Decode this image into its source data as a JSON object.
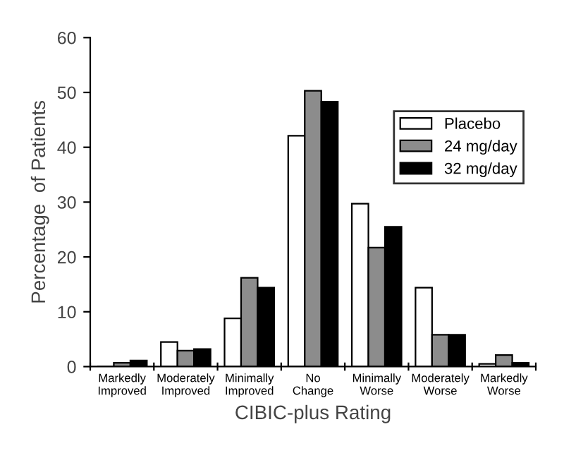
{
  "chart_data": {
    "type": "bar",
    "categories": [
      "Markedly\nImproved",
      "Moderately\nImproved",
      "Minimally\nImproved",
      "No\nChange",
      "Minimally\nWorse",
      "Moderately\nWorse",
      "Markedly\nWorse"
    ],
    "series": [
      {
        "name": "Placebo",
        "color": "#ffffff",
        "values": [
          0,
          4.5,
          8.8,
          42.1,
          29.7,
          14.4,
          0.5
        ]
      },
      {
        "name": "24 mg/day",
        "color": "#8c8c8c",
        "values": [
          0.7,
          2.9,
          16.2,
          50.3,
          21.7,
          5.8,
          2.1
        ]
      },
      {
        "name": "32 mg/day",
        "color": "#000000",
        "values": [
          1.1,
          3.2,
          14.4,
          48.3,
          25.5,
          5.8,
          0.7
        ]
      }
    ],
    "xlabel": "CIBIC-plus Rating",
    "ylabel": "Percentage  of Patients",
    "ylim": [
      0,
      60
    ],
    "yticks": [
      0,
      10,
      20,
      30,
      40,
      50,
      60
    ],
    "legend": "top right",
    "grid": false
  }
}
